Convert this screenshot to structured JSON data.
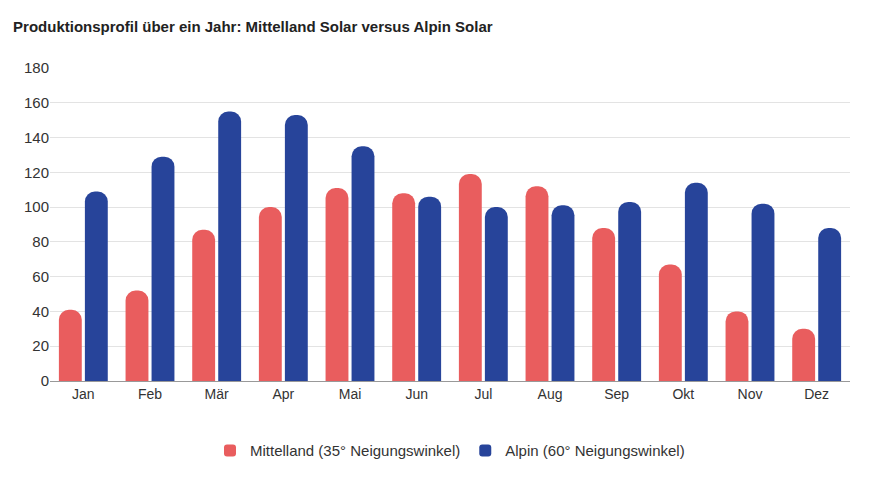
{
  "chart_data": {
    "type": "bar",
    "title": "Produktionsprofil über ein Jahr: Mittelland Solar versus Alpin Solar",
    "categories": [
      "Jan",
      "Feb",
      "Mär",
      "Apr",
      "Mai",
      "Jun",
      "Jul",
      "Aug",
      "Sep",
      "Okt",
      "Nov",
      "Dez"
    ],
    "series": [
      {
        "name": "Mittelland (35° Neigungswinkel)",
        "color": "#e95d5e",
        "values": [
          41,
          52,
          87,
          100,
          111,
          108,
          119,
          112,
          88,
          67,
          40,
          30
        ]
      },
      {
        "name": "Alpin (60° Neigungswinkel)",
        "color": "#27449a",
        "values": [
          109,
          129,
          155,
          153,
          135,
          106,
          100,
          101,
          103,
          114,
          102,
          88
        ]
      }
    ],
    "ylim": [
      0,
      180
    ],
    "yticks": [
      0,
      20,
      40,
      60,
      80,
      100,
      120,
      140,
      160,
      180
    ],
    "grid": true,
    "legend": "bottom"
  }
}
